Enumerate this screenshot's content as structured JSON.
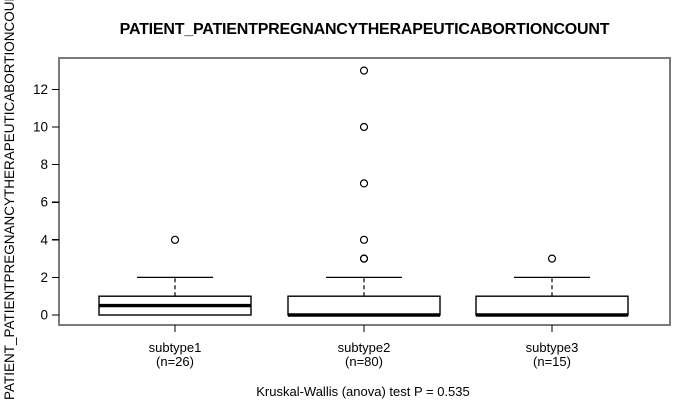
{
  "chart_data": {
    "type": "boxplot",
    "title": "PATIENT_PATIENTPREGNANCYTHERAPEUTICABORTIONCOUNT",
    "ylabel": "PATIENT_PATIENTPREGNANCYTHERAPEUTICABORTIONCOUNT",
    "footer": "Kruskal-Wallis (anova) test P = 0.535",
    "test_name": "Kruskal-Wallis (anova)",
    "p_value": 0.535,
    "yticks": [
      0,
      2,
      4,
      6,
      8,
      10,
      12
    ],
    "ylim": [
      -0.5,
      13.6
    ],
    "grid": false,
    "legend": "none",
    "colors": {
      "ink": "#000000",
      "frame": "#7a7a7a",
      "box_fill": "#ffffff",
      "background": "#ffffff"
    },
    "groups": [
      {
        "label": "subtype1",
        "n_label": "(n=26)",
        "n": 26,
        "q1": 0,
        "median": 0.5,
        "q3": 1,
        "whisker_low": 0,
        "whisker_high": 2,
        "outliers": [
          4
        ]
      },
      {
        "label": "subtype2",
        "n_label": "(n=80)",
        "n": 80,
        "q1": 0,
        "median": 0,
        "q3": 1,
        "whisker_low": 0,
        "whisker_high": 2,
        "outliers": [
          3,
          3,
          4,
          7,
          10,
          13
        ]
      },
      {
        "label": "subtype3",
        "n_label": "(n=15)",
        "n": 15,
        "q1": 0,
        "median": 0,
        "q3": 1,
        "whisker_low": 0,
        "whisker_high": 2,
        "outliers": [
          3
        ]
      }
    ]
  }
}
